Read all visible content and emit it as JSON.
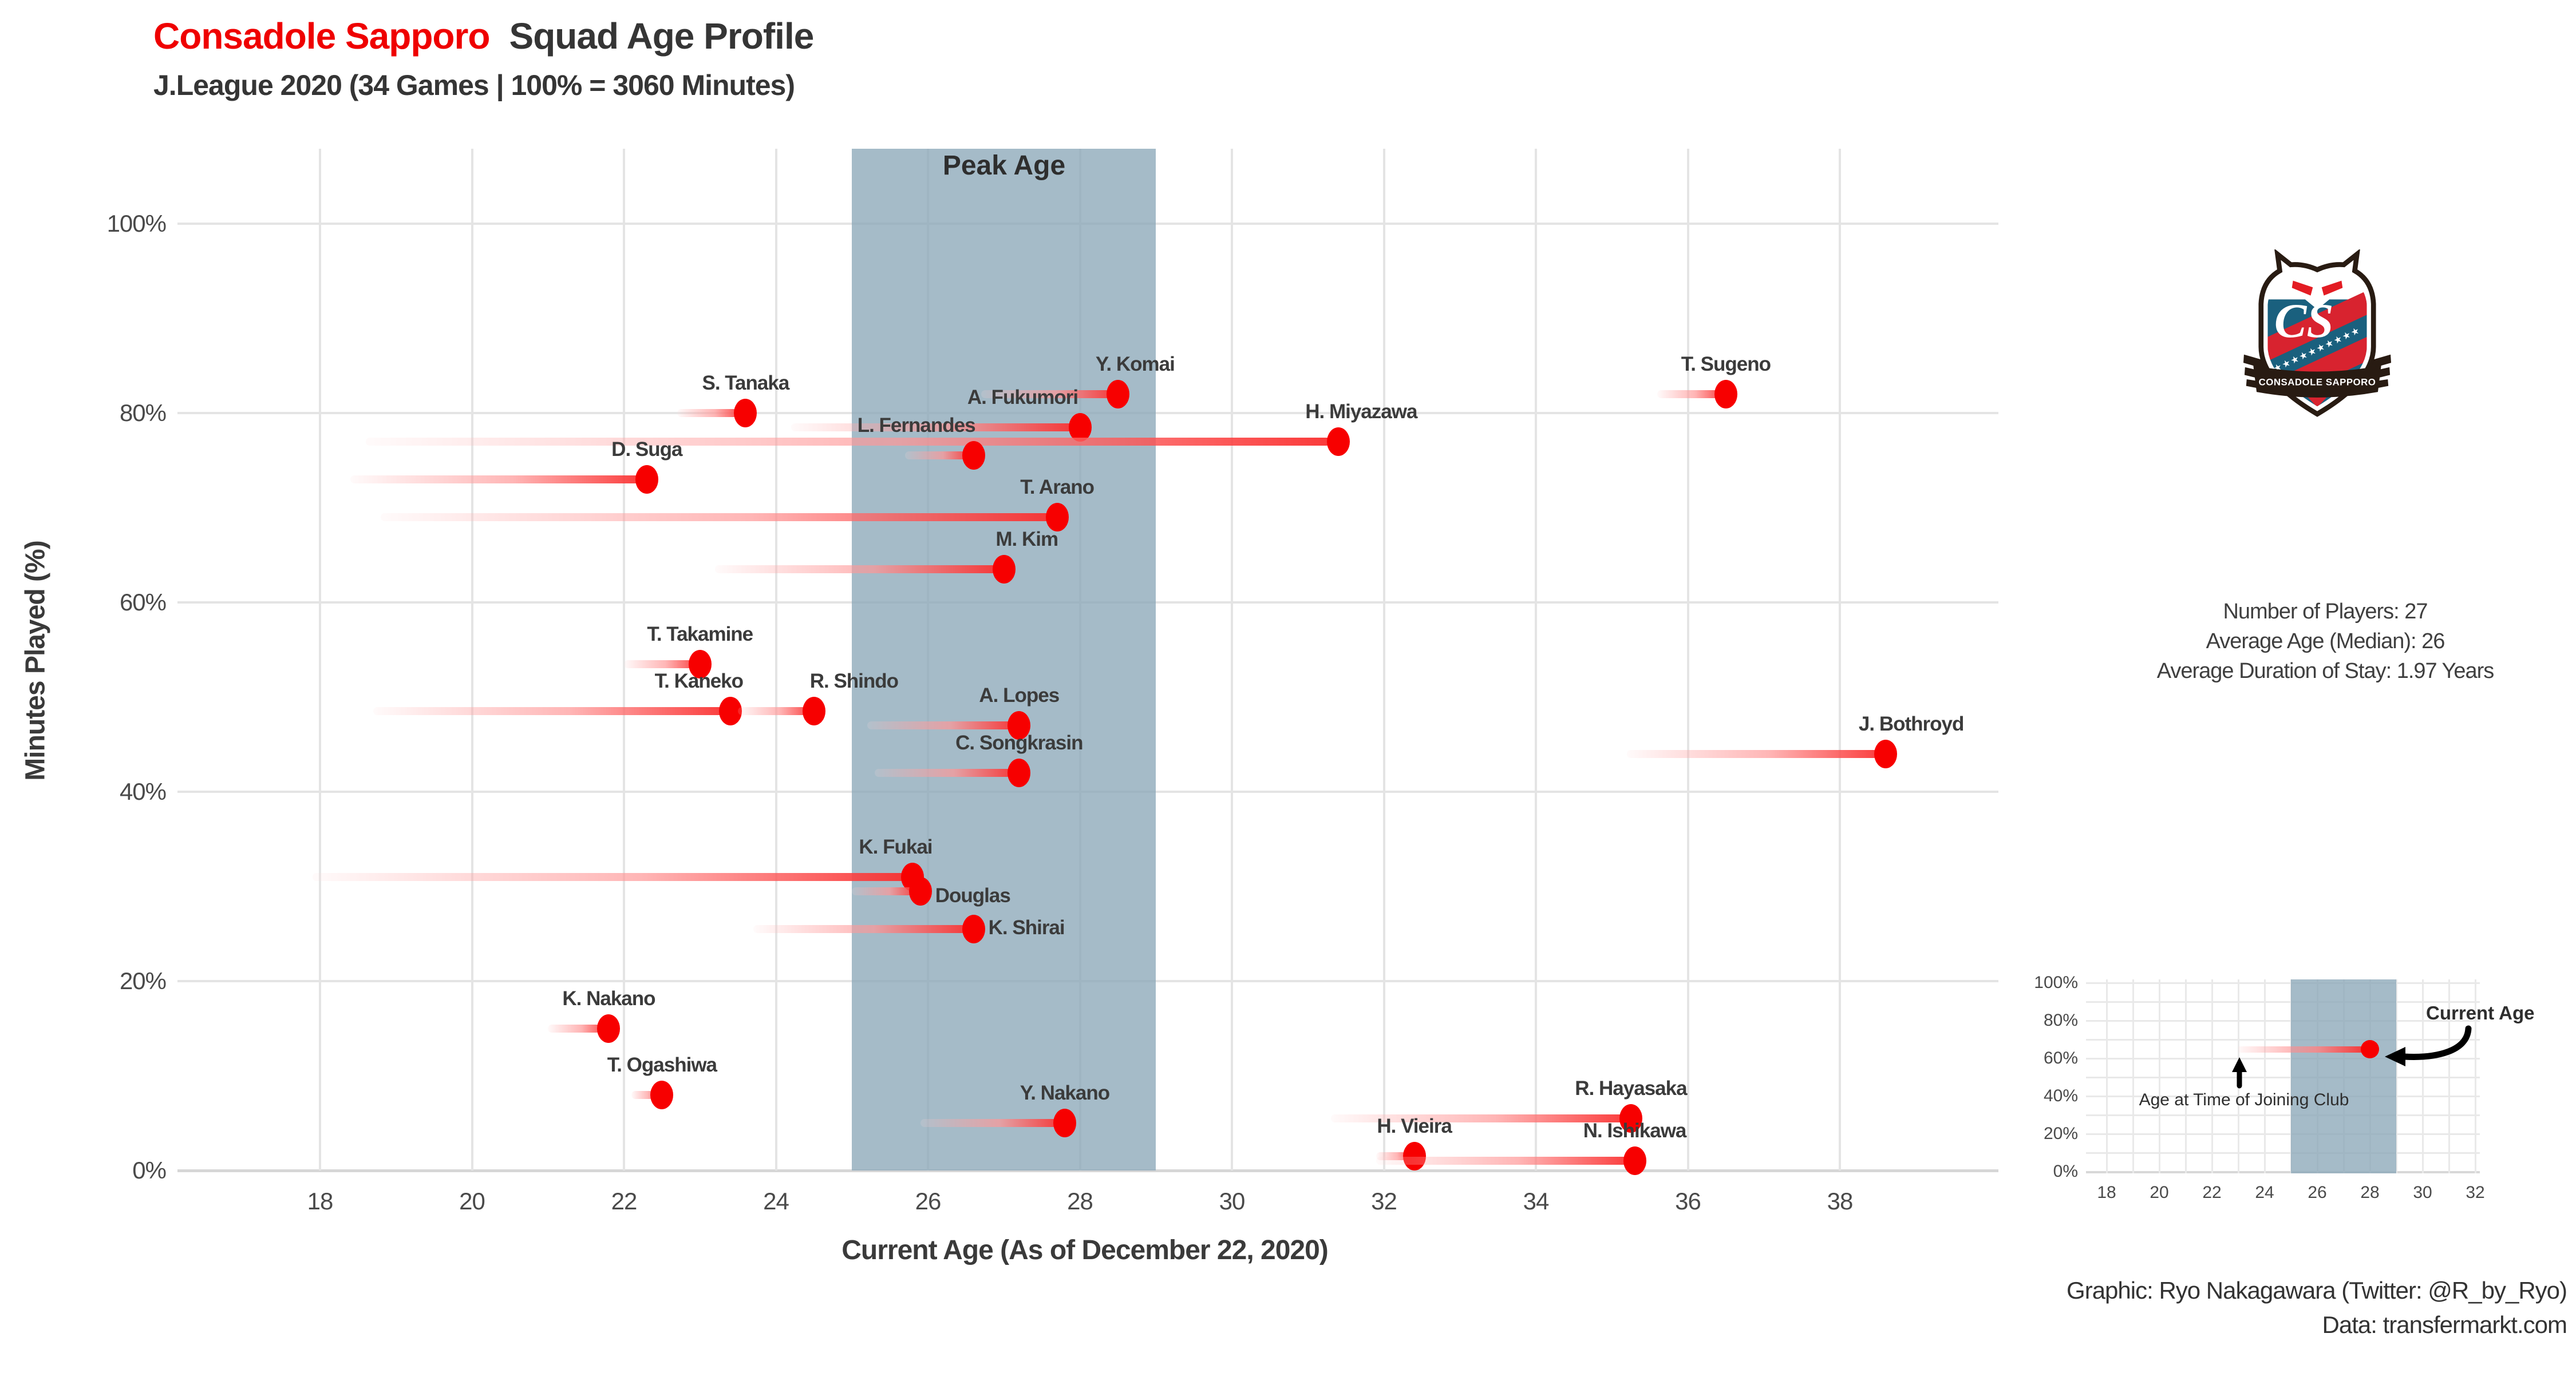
{
  "header": {
    "title_club": "Consadole Sapporo",
    "title_rest": "Squad Age Profile",
    "subtitle": "J.League 2020 (34 Games | 100% = 3060 Minutes)"
  },
  "chart_data": {
    "type": "scatter",
    "title": "Consadole Sapporo Squad Age Profile",
    "subtitle": "J.League 2020 (34 Games | 100% = 3060 Minutes)",
    "xlabel": "Current Age (As of December 22, 2020)",
    "ylabel": "Minutes Played (%)",
    "xlim": [
      16.2,
      40.1
    ],
    "ylim": [
      0,
      108
    ],
    "x_ticks": [
      18,
      20,
      22,
      24,
      26,
      28,
      30,
      32,
      34,
      36,
      38
    ],
    "y_ticks": [
      0,
      20,
      40,
      60,
      80,
      100
    ],
    "grid": "major-only",
    "peak_band": {
      "label": "Peak Age",
      "from": 25,
      "to": 29
    },
    "series_meaning": "dot = current age vs minutes played %, trail fades back to age at time of joining club",
    "players": [
      {
        "name": "T. Sugeno",
        "join_age": 35.6,
        "current_age": 36.5,
        "minutes_pct": 82,
        "label": "above"
      },
      {
        "name": "Y. Komai",
        "join_age": 26.7,
        "current_age": 28.5,
        "minutes_pct": 82,
        "label": "above",
        "dx": 30
      },
      {
        "name": "S. Tanaka",
        "join_age": 22.7,
        "current_age": 23.6,
        "minutes_pct": 80,
        "label": "above"
      },
      {
        "name": "A. Fukumori",
        "join_age": 24.2,
        "current_age": 28.0,
        "minutes_pct": 78.5,
        "label": "above",
        "dx": -100
      },
      {
        "name": "H. Miyazawa",
        "join_age": 18.6,
        "current_age": 31.4,
        "minutes_pct": 77,
        "label": "above",
        "dx": 40
      },
      {
        "name": "L. Fernandes",
        "join_age": 25.7,
        "current_age": 26.6,
        "minutes_pct": 75.5,
        "label": "above",
        "dx": -100
      },
      {
        "name": "D. Suga",
        "join_age": 18.4,
        "current_age": 22.3,
        "minutes_pct": 73,
        "label": "above"
      },
      {
        "name": "T. Arano",
        "join_age": 18.8,
        "current_age": 27.7,
        "minutes_pct": 69,
        "label": "above"
      },
      {
        "name": "M. Kim",
        "join_age": 23.2,
        "current_age": 27.0,
        "minutes_pct": 63.5,
        "label": "above",
        "dx": 40
      },
      {
        "name": "T. Takamine",
        "join_age": 22.0,
        "current_age": 23.0,
        "minutes_pct": 53.5,
        "label": "above"
      },
      {
        "name": "T. Kaneko",
        "join_age": 18.7,
        "current_age": 23.4,
        "minutes_pct": 48.5,
        "label": "above",
        "dx": -55
      },
      {
        "name": "R. Shindo",
        "join_age": 23.5,
        "current_age": 24.5,
        "minutes_pct": 48.5,
        "label": "above",
        "dx": 70
      },
      {
        "name": "A. Lopes",
        "join_age": 25.2,
        "current_age": 27.2,
        "minutes_pct": 47,
        "label": "above"
      },
      {
        "name": "J. Bothroyd",
        "join_age": 35.2,
        "current_age": 38.6,
        "minutes_pct": 44,
        "label": "above",
        "dx": 45
      },
      {
        "name": "C. Songkrasin",
        "join_age": 25.3,
        "current_age": 27.2,
        "minutes_pct": 42,
        "label": "above"
      },
      {
        "name": "K. Fukai",
        "join_age": 17.9,
        "current_age": 25.8,
        "minutes_pct": 31,
        "label": "above",
        "dx": -30
      },
      {
        "name": "Douglas",
        "join_age": 25.0,
        "current_age": 25.9,
        "minutes_pct": 29.5,
        "label": "right",
        "dy": 10
      },
      {
        "name": "K. Shirai",
        "join_age": 23.7,
        "current_age": 26.6,
        "minutes_pct": 25.5,
        "label": "right"
      },
      {
        "name": "K. Nakano",
        "join_age": 21.0,
        "current_age": 21.8,
        "minutes_pct": 15,
        "label": "above"
      },
      {
        "name": "T. Ogashiwa",
        "join_age": 22.1,
        "current_age": 22.5,
        "minutes_pct": 8,
        "label": "above"
      },
      {
        "name": "Y. Nakano",
        "join_age": 25.9,
        "current_age": 27.8,
        "minutes_pct": 5,
        "label": "above"
      },
      {
        "name": "R. Hayasaka",
        "join_age": 31.3,
        "current_age": 35.25,
        "minutes_pct": 5.5,
        "label": "above"
      },
      {
        "name": "H. Vieira",
        "join_age": 31.9,
        "current_age": 32.4,
        "minutes_pct": 1.5,
        "label": "above"
      },
      {
        "name": "N. Ishikawa",
        "join_age": 31.9,
        "current_age": 35.3,
        "minutes_pct": 1,
        "label": "above"
      }
    ]
  },
  "side_panel": {
    "crest": {
      "monogram": "CS",
      "banner": "CONSADOLE SAPPORO"
    },
    "stats": [
      "Number of Players: 27",
      "Average Age (Median): 26",
      "Average Duration of Stay: 1.97 Years"
    ]
  },
  "legend_chart": {
    "x_ticks": [
      18,
      20,
      22,
      24,
      26,
      28,
      30,
      32
    ],
    "y_ticks": [
      0,
      20,
      40,
      60,
      80,
      100
    ],
    "band": [
      25,
      29
    ],
    "example": {
      "join_age": 23,
      "current_age": 28,
      "minutes_pct": 65
    },
    "annotations": {
      "current": "Current Age",
      "join": "Age at Time of Joining Club"
    }
  },
  "credits": [
    "Graphic: Ryo Nakagawara (Twitter: @R_by_Ryo)",
    "Data: transfermarkt.com"
  ],
  "colors": {
    "accent_red": "#f70000",
    "title_red": "#ef0000",
    "band_blue": "#8ca8b8",
    "gridline": "#e4e4e4",
    "text_dark": "#3b3b3b",
    "crest_blue": "#1a607e",
    "crest_red": "#d8232f",
    "crest_outline": "#281b12"
  }
}
